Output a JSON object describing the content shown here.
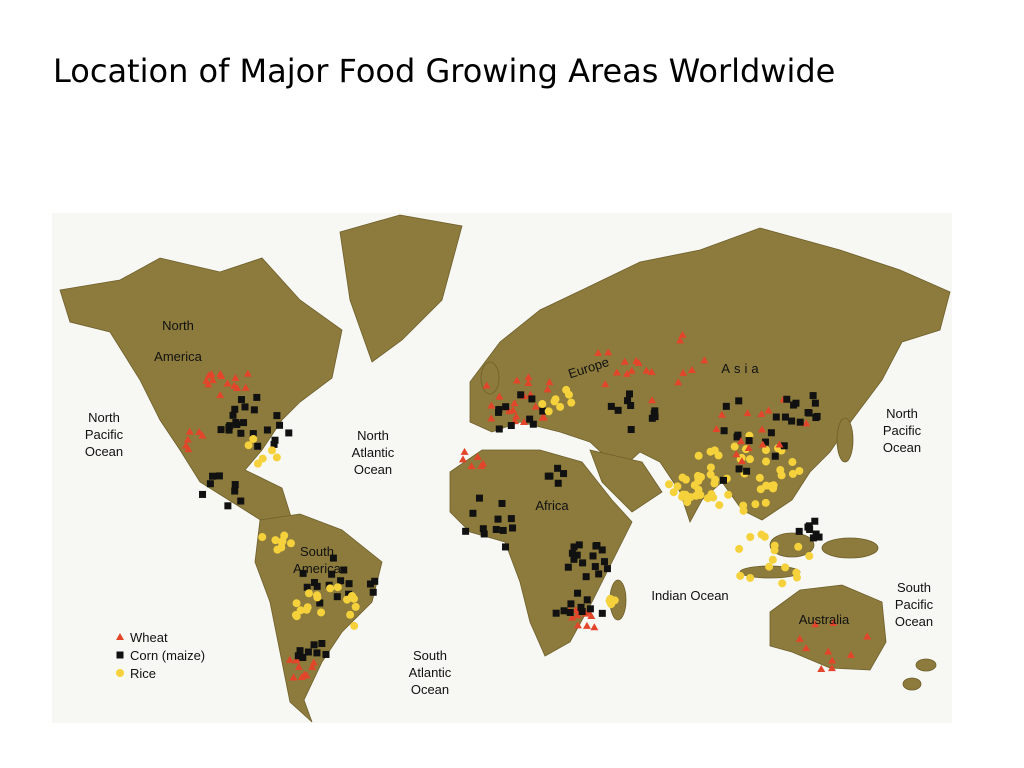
{
  "title": "Location of Major Food Growing Areas Worldwide",
  "map": {
    "labels": [
      {
        "lines": [
          "North",
          "America"
        ]
      },
      {
        "lines": [
          "North",
          "Pacific",
          "Ocean"
        ]
      },
      {
        "lines": [
          "North",
          "Atlantic",
          "Ocean"
        ]
      },
      {
        "lines": [
          "Europe"
        ]
      },
      {
        "lines": [
          "Asia"
        ]
      },
      {
        "lines": [
          "Africa"
        ]
      },
      {
        "lines": [
          "South",
          "America"
        ]
      },
      {
        "lines": [
          "Indian Ocean"
        ]
      },
      {
        "lines": [
          "North",
          "Pacific",
          "Ocean"
        ]
      },
      {
        "lines": [
          "South",
          "Pacific",
          "Ocean"
        ]
      },
      {
        "lines": [
          "Australia"
        ]
      },
      {
        "lines": [
          "South",
          "Atlantic",
          "Ocean"
        ]
      }
    ]
  },
  "legend": [
    {
      "label": "Wheat"
    },
    {
      "label": "Corn (maize)"
    },
    {
      "label": "Rice"
    }
  ]
}
